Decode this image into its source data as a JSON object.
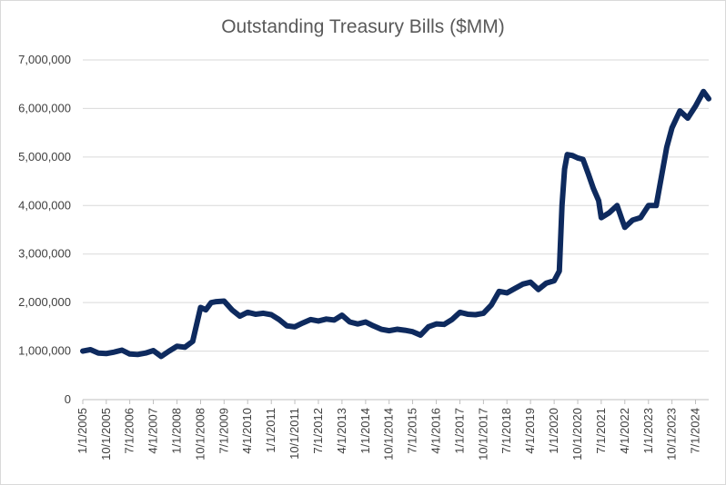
{
  "chart_data": {
    "type": "line",
    "title": "Outstanding Treasury Bills ($MM)",
    "xlabel": "",
    "ylabel": "",
    "ylim": [
      0,
      7000000
    ],
    "yticks": [
      0,
      1000000,
      2000000,
      3000000,
      4000000,
      5000000,
      6000000,
      7000000
    ],
    "ytick_labels": [
      "0",
      "1,000,000",
      "2,000,000",
      "3,000,000",
      "4,000,000",
      "5,000,000",
      "6,000,000",
      "7,000,000"
    ],
    "xlim": [
      "2005-01-01",
      "2024-12-01"
    ],
    "xticks": [
      "2005-01-01",
      "2005-10-01",
      "2006-07-01",
      "2007-04-01",
      "2008-01-01",
      "2008-10-01",
      "2009-07-01",
      "2010-04-01",
      "2011-01-01",
      "2011-10-01",
      "2012-07-01",
      "2013-04-01",
      "2014-01-01",
      "2014-10-01",
      "2015-07-01",
      "2016-04-01",
      "2017-01-01",
      "2017-10-01",
      "2018-07-01",
      "2019-04-01",
      "2020-01-01",
      "2020-10-01",
      "2021-07-01",
      "2022-04-01",
      "2023-01-01",
      "2023-10-01",
      "2024-07-01"
    ],
    "xtick_labels": [
      "1/1/2005",
      "10/1/2005",
      "7/1/2006",
      "4/1/2007",
      "1/1/2008",
      "10/1/2008",
      "7/1/2009",
      "4/1/2010",
      "1/1/2011",
      "10/1/2011",
      "7/1/2012",
      "4/1/2013",
      "1/1/2014",
      "10/1/2014",
      "7/1/2015",
      "4/1/2016",
      "1/1/2017",
      "10/1/2017",
      "7/1/2018",
      "4/1/2019",
      "1/1/2020",
      "10/1/2020",
      "7/1/2021",
      "4/1/2022",
      "1/1/2023",
      "10/1/2023",
      "7/1/2024"
    ],
    "grid": "horizontal",
    "legend": "none",
    "series": [
      {
        "color": "#0e2a5e",
        "points": [
          [
            "2005-01-01",
            1000000
          ],
          [
            "2005-04-01",
            1030000
          ],
          [
            "2005-07-01",
            960000
          ],
          [
            "2005-10-01",
            950000
          ],
          [
            "2006-01-01",
            980000
          ],
          [
            "2006-04-01",
            1020000
          ],
          [
            "2006-07-01",
            940000
          ],
          [
            "2006-10-01",
            930000
          ],
          [
            "2007-01-01",
            960000
          ],
          [
            "2007-04-01",
            1010000
          ],
          [
            "2007-07-01",
            890000
          ],
          [
            "2007-10-01",
            1000000
          ],
          [
            "2008-01-01",
            1100000
          ],
          [
            "2008-04-01",
            1080000
          ],
          [
            "2008-07-01",
            1200000
          ],
          [
            "2008-10-01",
            1900000
          ],
          [
            "2008-12-01",
            1850000
          ],
          [
            "2009-02-01",
            2000000
          ],
          [
            "2009-04-01",
            2020000
          ],
          [
            "2009-07-01",
            2030000
          ],
          [
            "2009-10-01",
            1850000
          ],
          [
            "2010-01-01",
            1720000
          ],
          [
            "2010-04-01",
            1800000
          ],
          [
            "2010-07-01",
            1760000
          ],
          [
            "2010-10-01",
            1780000
          ],
          [
            "2011-01-01",
            1750000
          ],
          [
            "2011-04-01",
            1650000
          ],
          [
            "2011-07-01",
            1520000
          ],
          [
            "2011-10-01",
            1500000
          ],
          [
            "2012-01-01",
            1580000
          ],
          [
            "2012-04-01",
            1650000
          ],
          [
            "2012-07-01",
            1620000
          ],
          [
            "2012-10-01",
            1660000
          ],
          [
            "2013-01-01",
            1640000
          ],
          [
            "2013-04-01",
            1740000
          ],
          [
            "2013-07-01",
            1600000
          ],
          [
            "2013-10-01",
            1560000
          ],
          [
            "2014-01-01",
            1600000
          ],
          [
            "2014-04-01",
            1520000
          ],
          [
            "2014-07-01",
            1450000
          ],
          [
            "2014-10-01",
            1420000
          ],
          [
            "2015-01-01",
            1450000
          ],
          [
            "2015-04-01",
            1430000
          ],
          [
            "2015-07-01",
            1400000
          ],
          [
            "2015-10-01",
            1330000
          ],
          [
            "2016-01-01",
            1500000
          ],
          [
            "2016-04-01",
            1560000
          ],
          [
            "2016-07-01",
            1550000
          ],
          [
            "2016-10-01",
            1650000
          ],
          [
            "2017-01-01",
            1800000
          ],
          [
            "2017-04-01",
            1760000
          ],
          [
            "2017-07-01",
            1750000
          ],
          [
            "2017-10-01",
            1780000
          ],
          [
            "2018-01-01",
            1950000
          ],
          [
            "2018-04-01",
            2230000
          ],
          [
            "2018-07-01",
            2200000
          ],
          [
            "2018-10-01",
            2290000
          ],
          [
            "2019-01-01",
            2380000
          ],
          [
            "2019-04-01",
            2420000
          ],
          [
            "2019-07-01",
            2270000
          ],
          [
            "2019-10-01",
            2400000
          ],
          [
            "2020-01-01",
            2450000
          ],
          [
            "2020-03-01",
            2650000
          ],
          [
            "2020-04-01",
            4000000
          ],
          [
            "2020-05-01",
            4750000
          ],
          [
            "2020-06-01",
            5050000
          ],
          [
            "2020-08-01",
            5030000
          ],
          [
            "2020-10-01",
            4980000
          ],
          [
            "2020-12-01",
            4950000
          ],
          [
            "2021-02-01",
            4650000
          ],
          [
            "2021-04-01",
            4350000
          ],
          [
            "2021-06-01",
            4100000
          ],
          [
            "2021-07-01",
            3750000
          ],
          [
            "2021-10-01",
            3850000
          ],
          [
            "2022-01-01",
            4000000
          ],
          [
            "2022-03-01",
            3700000
          ],
          [
            "2022-04-01",
            3550000
          ],
          [
            "2022-07-01",
            3700000
          ],
          [
            "2022-10-01",
            3750000
          ],
          [
            "2023-01-01",
            4000000
          ],
          [
            "2023-04-01",
            4000000
          ],
          [
            "2023-06-01",
            4600000
          ],
          [
            "2023-08-01",
            5200000
          ],
          [
            "2023-10-01",
            5600000
          ],
          [
            "2024-01-01",
            5950000
          ],
          [
            "2024-04-01",
            5800000
          ],
          [
            "2024-07-01",
            6050000
          ],
          [
            "2024-10-01",
            6350000
          ],
          [
            "2024-12-01",
            6200000
          ]
        ]
      }
    ]
  }
}
